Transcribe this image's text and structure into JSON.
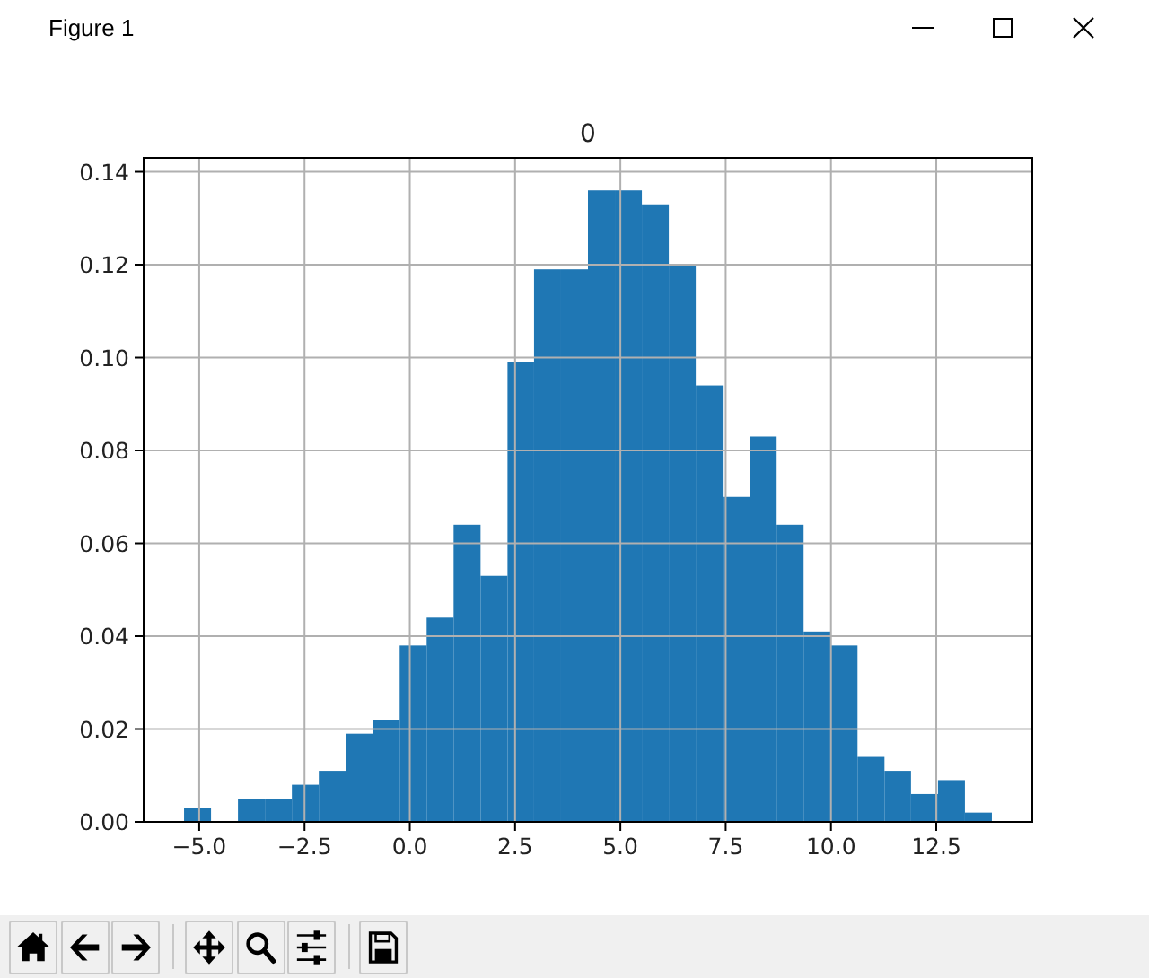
{
  "chart_data": {
    "type": "histogram",
    "title": "0",
    "bins": [
      -5.36,
      -4.72,
      -4.08,
      -3.44,
      -2.8,
      -2.16,
      -1.52,
      -0.88,
      -0.24,
      0.4,
      1.04,
      1.68,
      2.32,
      2.95,
      3.59,
      4.23,
      4.87,
      5.51,
      6.15,
      6.79,
      7.43,
      8.07,
      8.71,
      9.35,
      9.99,
      10.63,
      11.27,
      11.9,
      12.54,
      13.18,
      13.82
    ],
    "values": [
      0.003,
      0,
      0.005,
      0.005,
      0.008,
      0.011,
      0.019,
      0.022,
      0.038,
      0.044,
      0.064,
      0.053,
      0.099,
      0.119,
      0.119,
      0.136,
      0.136,
      0.133,
      0.12,
      0.094,
      0.07,
      0.083,
      0.064,
      0.041,
      0.038,
      0.014,
      0.011,
      0.006,
      0.009,
      0.002
    ],
    "color": "#1f77b4",
    "xlim": [
      -6.32,
      14.78
    ],
    "ylim": [
      0,
      0.143
    ],
    "xticks": [
      {
        "value": -5,
        "label": "−5.0"
      },
      {
        "value": -2.5,
        "label": "−2.5"
      },
      {
        "value": 0,
        "label": "0.0"
      },
      2.5,
      {
        "value": 5,
        "label": "5.0"
      },
      7.5,
      {
        "value": 10,
        "label": "10.0"
      },
      12.5
    ],
    "yticks": [
      {
        "value": 0,
        "label": "0.00"
      },
      0.02,
      0.04,
      0.06,
      0.08,
      {
        "value": 0.1,
        "label": "0.10"
      },
      0.12,
      0.14
    ],
    "grid": true,
    "annotations": [
      "Figure 1"
    ]
  }
}
